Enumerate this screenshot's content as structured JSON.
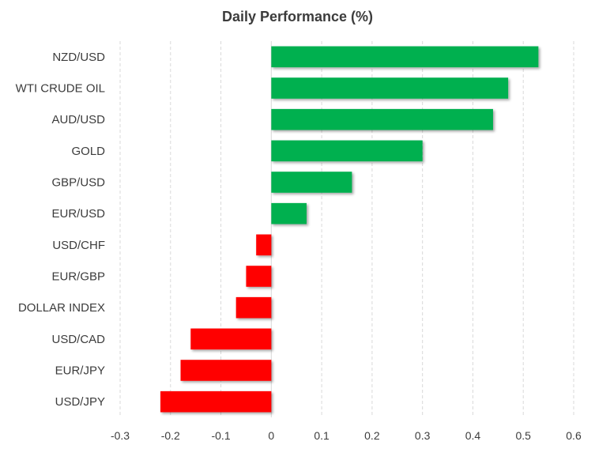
{
  "chart_data": {
    "type": "bar",
    "orientation": "horizontal",
    "title": "Daily Performance (%)",
    "xlabel": "",
    "ylabel": "",
    "categories": [
      "NZD/USD",
      "WTI CRUDE OIL",
      "AUD/USD",
      "GOLD",
      "GBP/USD",
      "EUR/USD",
      "USD/CHF",
      "EUR/GBP",
      "DOLLAR INDEX",
      "USD/CAD",
      "EUR/JPY",
      "USD/JPY"
    ],
    "values": [
      0.53,
      0.47,
      0.44,
      0.3,
      0.16,
      0.07,
      -0.03,
      -0.05,
      -0.07,
      -0.16,
      -0.18,
      -0.22
    ],
    "xlim": [
      -0.3,
      0.6
    ],
    "xticks": [
      "-0.3",
      "-0.2",
      "-0.1",
      "0",
      "0.1",
      "0.2",
      "0.3",
      "0.4",
      "0.5",
      "0.6"
    ],
    "grid": true,
    "colors": {
      "positive": "#00b050",
      "negative": "#ff0000"
    }
  }
}
